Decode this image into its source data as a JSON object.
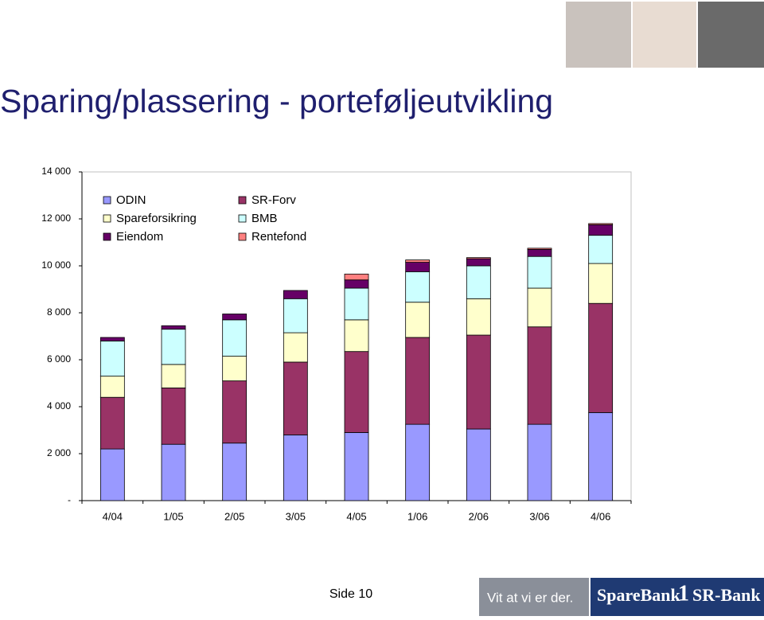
{
  "chart_data": {
    "type": "bar",
    "stacked": true,
    "title": "Sparing/plassering - porteføljeutvikling",
    "categories": [
      "4/04",
      "1/05",
      "2/05",
      "3/05",
      "4/05",
      "1/06",
      "2/06",
      "3/06",
      "4/06"
    ],
    "series": [
      {
        "name": "ODIN",
        "color": "#9999ff",
        "values": [
          2200,
          2400,
          2450,
          2800,
          2900,
          3250,
          3050,
          3250,
          3750
        ]
      },
      {
        "name": "SR-Forv",
        "color": "#993366",
        "values": [
          2200,
          2400,
          2650,
          3100,
          3450,
          3700,
          4000,
          4150,
          4650
        ]
      },
      {
        "name": "Spareforsikring",
        "color": "#ffffcc",
        "values": [
          900,
          1000,
          1050,
          1250,
          1350,
          1500,
          1550,
          1650,
          1700
        ]
      },
      {
        "name": "BMB",
        "color": "#ccffff",
        "values": [
          1500,
          1500,
          1550,
          1450,
          1350,
          1300,
          1400,
          1350,
          1200
        ]
      },
      {
        "name": "Eiendom",
        "color": "#660066",
        "values": [
          150,
          150,
          250,
          350,
          350,
          400,
          300,
          300,
          450
        ]
      },
      {
        "name": "Rentefond",
        "color": "#ff8080",
        "values": [
          0,
          0,
          0,
          0,
          250,
          100,
          50,
          50,
          50
        ]
      }
    ],
    "ylim": [
      0,
      14000
    ],
    "yticks": [
      {
        "value": 0,
        "label": "-"
      },
      {
        "value": 2000,
        "label": "2 000"
      },
      {
        "value": 4000,
        "label": "4 000"
      },
      {
        "value": 6000,
        "label": "6 000"
      },
      {
        "value": 8000,
        "label": "8 000"
      },
      {
        "value": 10000,
        "label": "10 000"
      },
      {
        "value": 12000,
        "label": "12 000"
      },
      {
        "value": 14000,
        "label": "14 000"
      }
    ],
    "grid": false
  },
  "footer": {
    "page": "Side 10",
    "slogan": "Vit at vi er der.",
    "brand_left": "SpareBank",
    "brand_mid": "1",
    "brand_right": "SR-Bank"
  }
}
